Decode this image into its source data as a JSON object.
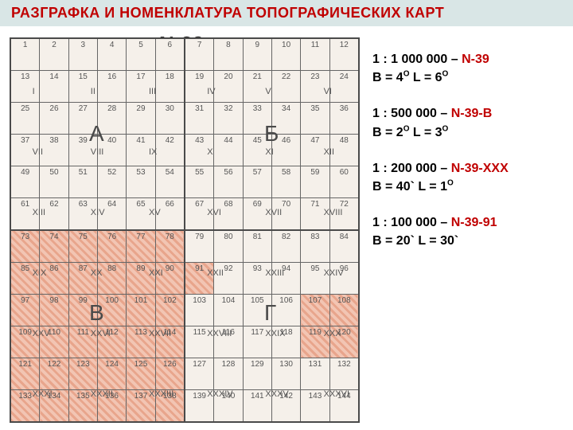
{
  "title": "РАЗГРАФКА И НОМЕНКЛАТУРА ТОПОГРАФИЧЕСКИХ КАРТ",
  "sheet_label": "N-39",
  "colors": {
    "title_bg": "#d9e6e6",
    "title_text": "#c00000",
    "grid_border": "#4a4a4a",
    "cell_bg": "#f5f0ea",
    "hatch_a": "#e8a58c",
    "hatch_b": "#f2c5b3",
    "nom_color": "#c00000"
  },
  "grid": {
    "rows": 12,
    "cols": 12,
    "quadrants": {
      "A": "А",
      "B": "Б",
      "V": "В",
      "G": "Г"
    },
    "roman_row_2": [
      "I",
      "II",
      "III",
      "IV",
      "V",
      "VI"
    ],
    "roman_row_4": [
      "VII",
      "VIII",
      "IX",
      "X",
      "XI",
      "XII"
    ],
    "roman_row_6": [
      "XIII",
      "XIV",
      "XV",
      "XVI",
      "XVII",
      "XVIII"
    ],
    "roman_row_8": [
      "XIX",
      "XX",
      "XXI",
      "XXII",
      "XXIII",
      "XXIV"
    ],
    "roman_row_10": [
      "XXV",
      "XXVI",
      "XXVII",
      "XXVIII",
      "XXIX",
      "XXX"
    ],
    "roman_row_12": [
      "XXXI",
      "XXXII",
      "XXXIII",
      "XXXIV",
      "XXXV",
      "XXXVI"
    ]
  },
  "legend": {
    "l1": {
      "scale": "1 : 1 000 000 – ",
      "nom": "N-39",
      "dim": "В = 4",
      "dim2": "  L = 6",
      "deg": "О"
    },
    "l2": {
      "scale": "1 : 500 000 – ",
      "nom": "N-39-В",
      "dim": "В = 2",
      "dim2": "  L = 3",
      "deg": "О"
    },
    "l3": {
      "scale": "1 : 200 000 – ",
      "nom": "N-39-XXX",
      "dim": "В = 40` L = 1",
      "dim2": "",
      "deg": "О"
    },
    "l4": {
      "scale": "1 : 100 000 – ",
      "nom": "N-39-91",
      "dim": "В = 20` L = 30`",
      "dim2": "",
      "deg": ""
    }
  }
}
